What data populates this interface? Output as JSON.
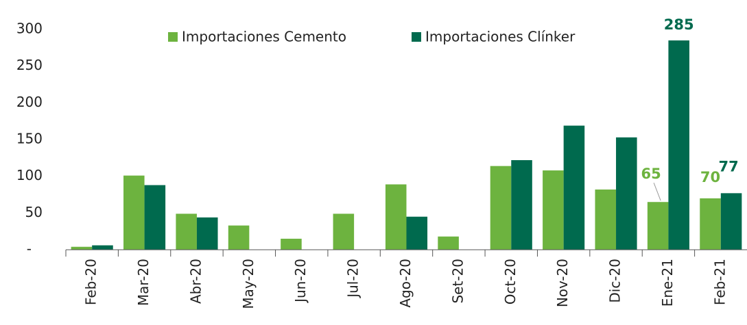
{
  "chart_data": {
    "type": "bar",
    "categories": [
      "Feb-20",
      "Mar-20",
      "Abr-20",
      "May-20",
      "Jun-20",
      "Jul-20",
      "Ago-20",
      "Set-20",
      "Oct-20",
      "Nov-20",
      "Dic-20",
      "Ene-21",
      "Feb-21"
    ],
    "series": [
      {
        "name": "Importaciones Cemento",
        "color": "#6db33f",
        "values": [
          4,
          101,
          49,
          33,
          15,
          49,
          89,
          18,
          114,
          108,
          82,
          65,
          70
        ],
        "value_labels": [
          null,
          null,
          null,
          null,
          null,
          null,
          null,
          null,
          null,
          null,
          null,
          "65",
          "70"
        ]
      },
      {
        "name": "Importaciones Clínker",
        "color": "#006a4e",
        "values": [
          6,
          88,
          44,
          0,
          0,
          0,
          45,
          0,
          122,
          169,
          153,
          285,
          77
        ],
        "value_labels": [
          null,
          null,
          null,
          null,
          null,
          null,
          null,
          null,
          null,
          null,
          null,
          "285",
          "77"
        ]
      }
    ],
    "ylim": [
      0,
      300
    ],
    "yticks": [
      {
        "value": 0,
        "label": "-"
      },
      50,
      100,
      150,
      200,
      250,
      300
    ],
    "grid": false
  }
}
